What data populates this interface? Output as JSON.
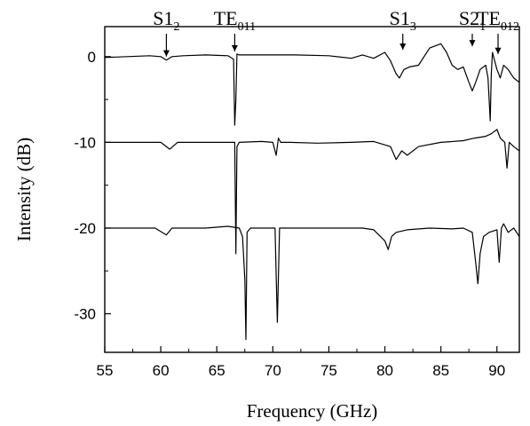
{
  "chart_data": {
    "type": "line",
    "title": "",
    "xlabel": "Frequency  (GHz)",
    "ylabel": "Intensity  (dB)",
    "xlim": [
      55,
      92
    ],
    "ylim": [
      -34.5,
      3.5
    ],
    "x_ticks": [
      "55",
      "60",
      "65",
      "70",
      "75",
      "80",
      "85",
      "90"
    ],
    "x_tick_values": [
      55,
      60,
      65,
      70,
      75,
      80,
      85,
      90
    ],
    "y_ticks": [
      "0",
      "-10",
      "-20",
      "-30"
    ],
    "y_tick_values": [
      0,
      -10,
      -20,
      -30
    ],
    "grid": false,
    "legend": "none",
    "line_color": "#000000",
    "series": [
      {
        "x": [
          55,
          57,
          59,
          60,
          60.5,
          61,
          62,
          64,
          66,
          66.5,
          66.6,
          66.7,
          66.8,
          67,
          69,
          72,
          75,
          77,
          78,
          79,
          80,
          80.5,
          81,
          81.3,
          81.7,
          82.2,
          83,
          84,
          85,
          85.5,
          86,
          86.5,
          87,
          87.5,
          87.8,
          88.1,
          88.5,
          89,
          89.2,
          89.4,
          89.5,
          89.6,
          89.8,
          90,
          90.3,
          90.6,
          91,
          91.5,
          92
        ],
        "y": [
          -0.1,
          0,
          0.1,
          0,
          -0.4,
          0,
          0.1,
          0.2,
          0.1,
          -0.3,
          -8.0,
          -5.0,
          0.3,
          0.2,
          0.2,
          0.2,
          0.1,
          -0.2,
          0.2,
          -0.2,
          0.5,
          -0.5,
          -2.0,
          -2.5,
          -1.5,
          -1.2,
          -1.0,
          1.0,
          1.5,
          0.5,
          -1.0,
          -1.5,
          -1.2,
          -3.0,
          -4.0,
          -3.0,
          -1.5,
          -1.0,
          -2.5,
          -7.5,
          -2.0,
          0.5,
          -0.5,
          -1.5,
          -2.5,
          -1.0,
          -1.5,
          -2.5,
          -3.0
        ]
      },
      {
        "x": [
          55,
          58,
          60,
          60.8,
          61.5,
          64,
          66,
          66.6,
          66.7,
          66.8,
          67,
          69,
          70,
          70.3,
          70.5,
          70.7,
          71.5,
          74,
          77,
          79,
          80.5,
          81,
          81.5,
          82,
          83,
          85,
          87,
          88,
          89,
          89.5,
          90,
          90.3,
          90.7,
          90.9,
          91.1,
          91.5,
          92
        ],
        "y": [
          -10,
          -10,
          -10,
          -10.8,
          -10,
          -10,
          -10,
          -10,
          -23.0,
          -10.5,
          -10,
          -9.9,
          -10,
          -11.5,
          -9.5,
          -10,
          -10,
          -10.1,
          -10,
          -9.9,
          -10.5,
          -12.0,
          -11.0,
          -11.5,
          -10.5,
          -10.0,
          -9.8,
          -9.5,
          -9.3,
          -9.0,
          -8.5,
          -9.5,
          -10.0,
          -13.0,
          -10.0,
          -10.5,
          -11.0
        ]
      },
      {
        "x": [
          55,
          58,
          59.5,
          60.5,
          61,
          64,
          66,
          67,
          67.3,
          67.5,
          67.6,
          67.7,
          68,
          69,
          70.2,
          70.4,
          70.6,
          71,
          75,
          77,
          78,
          79,
          80,
          80.3,
          80.6,
          81,
          82,
          84,
          86,
          87,
          87.8,
          88.1,
          88.3,
          88.5,
          88.8,
          89.3,
          90,
          90.2,
          90.4,
          90.6,
          91,
          91.5,
          92
        ],
        "y": [
          -20,
          -20,
          -20,
          -20.8,
          -20,
          -20,
          -19.8,
          -20,
          -21,
          -26,
          -33.0,
          -20.5,
          -20,
          -20,
          -20,
          -31.0,
          -20,
          -20,
          -20,
          -20,
          -20,
          -20.2,
          -21.5,
          -22.5,
          -21,
          -20.5,
          -20.2,
          -20.0,
          -20.1,
          -20.0,
          -20.5,
          -24.0,
          -26.5,
          -23.0,
          -21.0,
          -20.5,
          -20.2,
          -24.0,
          -20.0,
          -19.5,
          -20.5,
          -20.0,
          -21.0
        ]
      }
    ],
    "annotations": [
      {
        "text": "S1",
        "sub": "2",
        "x": 60.5,
        "y": -0.4
      },
      {
        "text": "TE",
        "sub": "011",
        "x": 66.6,
        "y": 0.2
      },
      {
        "text": "S1",
        "sub": "3",
        "x": 81.6,
        "y": 0.4
      },
      {
        "text": "S2",
        "sub": "1",
        "x": 87.8,
        "y": 0.8
      },
      {
        "text": "TE",
        "sub": "012",
        "x": 90.1,
        "y": -0.1
      }
    ]
  }
}
